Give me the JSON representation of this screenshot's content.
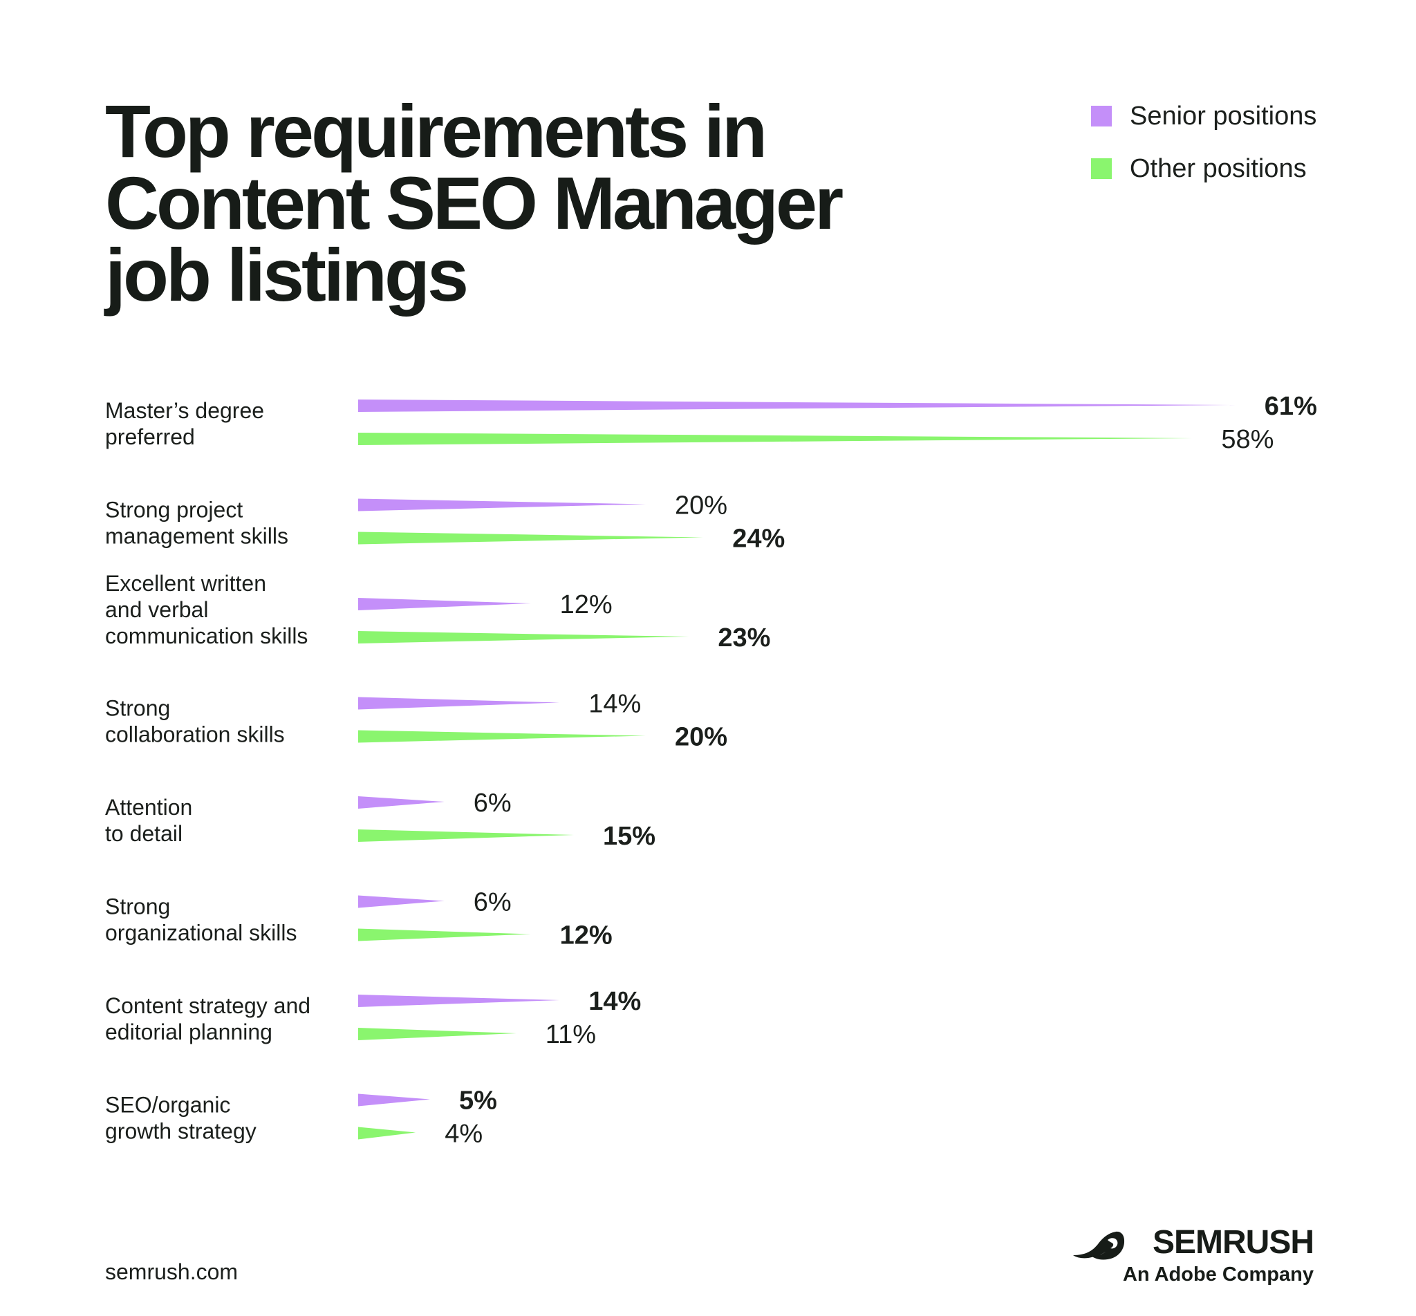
{
  "chart_data": {
    "type": "bar",
    "orientation": "horizontal",
    "title": "Top requirements in\nContent SEO Manager\njob listings",
    "categories": [
      "Master’s degree\npreferred",
      "Strong project\nmanagement skills",
      "Excellent written\nand verbal\ncommunication skills",
      "Strong\ncollaboration skills",
      "Attention\nto detail",
      "Strong\norganizational skills",
      "Content strategy and\neditorial planning",
      "SEO/organic\ngrowth strategy"
    ],
    "series": [
      {
        "name": "Senior positions",
        "color": "#c48ff9",
        "values": [
          61,
          20,
          12,
          14,
          6,
          6,
          14,
          5
        ],
        "labels": [
          "61%",
          "20%",
          "12%",
          "14%",
          "6%",
          "6%",
          "14%",
          "5%"
        ]
      },
      {
        "name": "Other positions",
        "color": "#8af56e",
        "values": [
          58,
          24,
          23,
          20,
          15,
          12,
          11,
          4
        ],
        "labels": [
          "58%",
          "24%",
          "23%",
          "20%",
          "15%",
          "12%",
          "11%",
          "4%"
        ]
      }
    ],
    "highlight": [
      [
        "senior",
        "other",
        "other",
        "other",
        "other",
        "other",
        "senior",
        "senior"
      ]
    ],
    "unit": "%",
    "xlim": [
      0,
      61
    ],
    "legend": "top-right",
    "grid": false
  },
  "footer": {
    "site": "semrush.com"
  },
  "brand": {
    "name": "SEMRUSH",
    "tagline": "An Adobe Company",
    "logo_icon": "semrush-flame-icon"
  }
}
